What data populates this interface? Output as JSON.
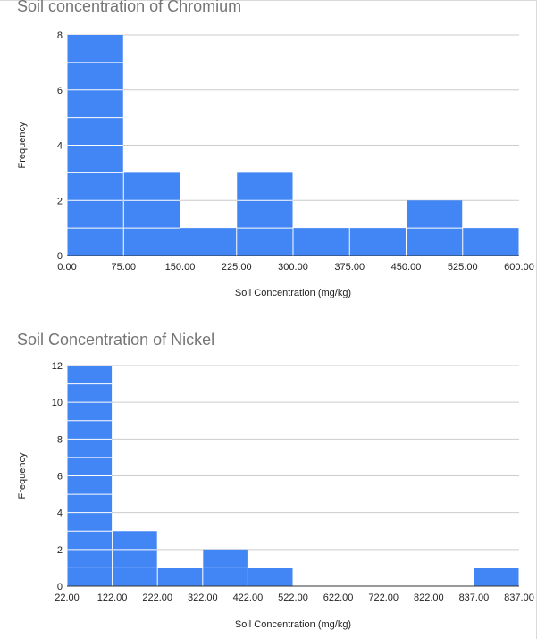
{
  "chart_data": [
    {
      "type": "bar",
      "title": "Soil concentration of Chromium",
      "xlabel": "Soil Concentration (mg/kg)",
      "ylabel": "Frequency",
      "x_ticks": [
        "0.00",
        "75.00",
        "150.00",
        "225.00",
        "300.00",
        "375.00",
        "450.00",
        "525.00",
        "600.00"
      ],
      "y_ticks": [
        "0",
        "2",
        "4",
        "6",
        "8"
      ],
      "ylim": [
        0,
        8
      ],
      "values": [
        8,
        3,
        1,
        3,
        1,
        1,
        2,
        1
      ],
      "grid": true,
      "bar_color": "#4285f4"
    },
    {
      "type": "bar",
      "title": "Soil Concentration of Nickel",
      "xlabel": "Soil Concentration (mg/kg)",
      "ylabel": "Frequency",
      "x_ticks": [
        "22.00",
        "122.00",
        "222.00",
        "322.00",
        "422.00",
        "522.00",
        "622.00",
        "722.00",
        "822.00",
        "837.00",
        "837.00"
      ],
      "y_ticks": [
        "0",
        "2",
        "4",
        "6",
        "8",
        "10",
        "12"
      ],
      "ylim": [
        0,
        12
      ],
      "values": [
        12,
        3,
        1,
        2,
        1,
        0,
        0,
        0,
        0,
        1
      ],
      "grid": true,
      "bar_color": "#4285f4"
    }
  ]
}
